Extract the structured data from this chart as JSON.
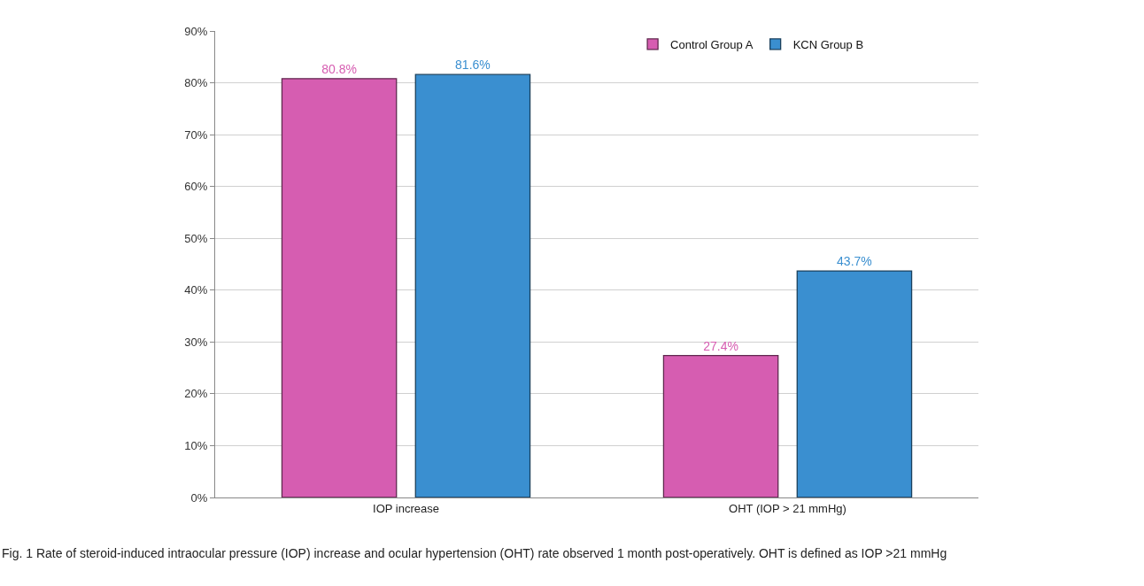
{
  "chart_data": {
    "type": "bar",
    "categories": [
      "IOP increase",
      "OHT (IOP > 21 mmHg)"
    ],
    "series": [
      {
        "name": "Control Group A",
        "color": "#d65db1",
        "values": [
          80.8,
          27.4
        ],
        "value_labels": [
          "80.8%",
          "27.4%"
        ]
      },
      {
        "name": "KCN Group B",
        "color": "#3a8fd0",
        "values": [
          81.6,
          43.7
        ],
        "value_labels": [
          "81.6%",
          "43.7%"
        ]
      }
    ],
    "ylim": [
      0,
      90
    ],
    "yticks": [
      {
        "value": 0,
        "label": "0%"
      },
      {
        "value": 10,
        "label": "10%"
      },
      {
        "value": 20,
        "label": "20%"
      },
      {
        "value": 30,
        "label": "30%"
      },
      {
        "value": 40,
        "label": "40%"
      },
      {
        "value": 50,
        "label": "50%"
      },
      {
        "value": 60,
        "label": "60%"
      },
      {
        "value": 70,
        "label": "70%"
      },
      {
        "value": 80,
        "label": "80%"
      },
      {
        "value": 90,
        "label": "90%"
      }
    ],
    "grid": "y",
    "legend": "top right",
    "annotations": [
      "Fig. 1 Rate of steroid-induced intraocular pressure (IOP) increase and ocular hypertension (OHT) rate observed 1 month post-operatively. OHT is defined as IOP >21 mmHg"
    ]
  }
}
